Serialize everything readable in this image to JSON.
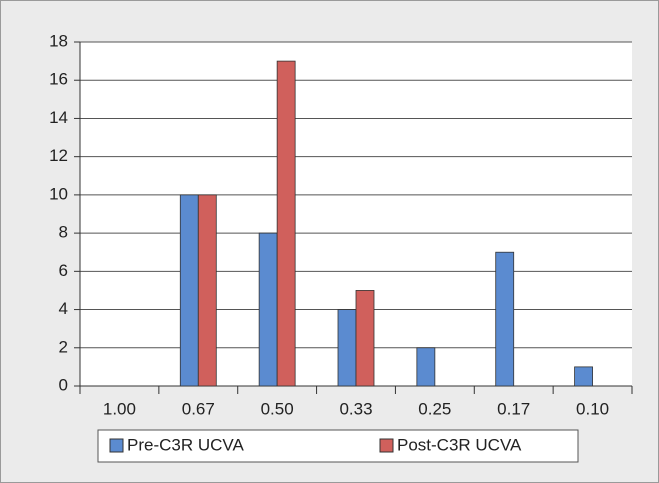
{
  "chart_data": {
    "type": "bar",
    "categories": [
      "1.00",
      "0.67",
      "0.50",
      "0.33",
      "0.25",
      "0.17",
      "0.10"
    ],
    "series": [
      {
        "name": "Pre-C3R UCVA",
        "color": "#5b8bd0",
        "values": [
          0,
          10,
          8,
          4,
          2,
          7,
          1
        ]
      },
      {
        "name": "Post-C3R UCVA",
        "color": "#d0605c",
        "values": [
          0,
          10,
          17,
          5,
          0,
          0,
          0
        ]
      }
    ],
    "ylim": [
      0,
      18
    ],
    "yticks": [
      0,
      2,
      4,
      6,
      8,
      10,
      12,
      14,
      16,
      18
    ],
    "grid": true,
    "legend": "bottom"
  }
}
